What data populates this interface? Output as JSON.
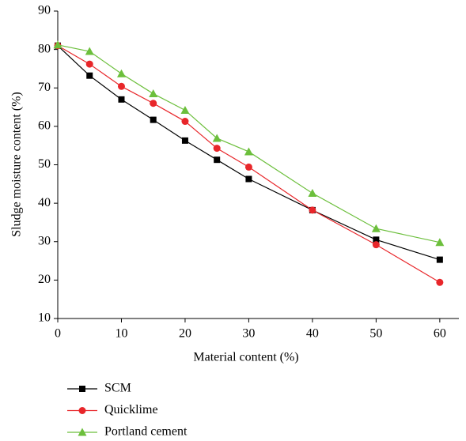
{
  "chart_data": {
    "type": "line",
    "x_label": "Material content (%)",
    "y_label": "Sludge moisture content (%)",
    "x": [
      0,
      5,
      10,
      15,
      20,
      25,
      30,
      40,
      50,
      60
    ],
    "series": [
      {
        "name": "SCM",
        "color": "#000000",
        "marker": "square",
        "values": [
          81,
          73.2,
          67,
          61.7,
          56.3,
          51.3,
          46.3,
          38.2,
          30.5,
          25.3
        ]
      },
      {
        "name": "Quicklime",
        "color": "#e8262a",
        "marker": "circle",
        "values": [
          81,
          76.2,
          70.4,
          66,
          61.3,
          54.3,
          49.4,
          38.2,
          29.2,
          19.4
        ]
      },
      {
        "name": "Portland cement",
        "color": "#6cbf3c",
        "marker": "triangle",
        "values": [
          81.2,
          79.5,
          73.7,
          68.5,
          64.2,
          56.9,
          53.4,
          42.6,
          33.4,
          29.8
        ]
      }
    ],
    "xlim": [
      0,
      63
    ],
    "xticks": [
      0,
      10,
      20,
      30,
      40,
      50,
      60
    ],
    "ylim": [
      10,
      90
    ],
    "yticks": [
      10,
      20,
      30,
      40,
      50,
      60,
      70,
      80,
      90
    ],
    "legend": "bottom"
  }
}
